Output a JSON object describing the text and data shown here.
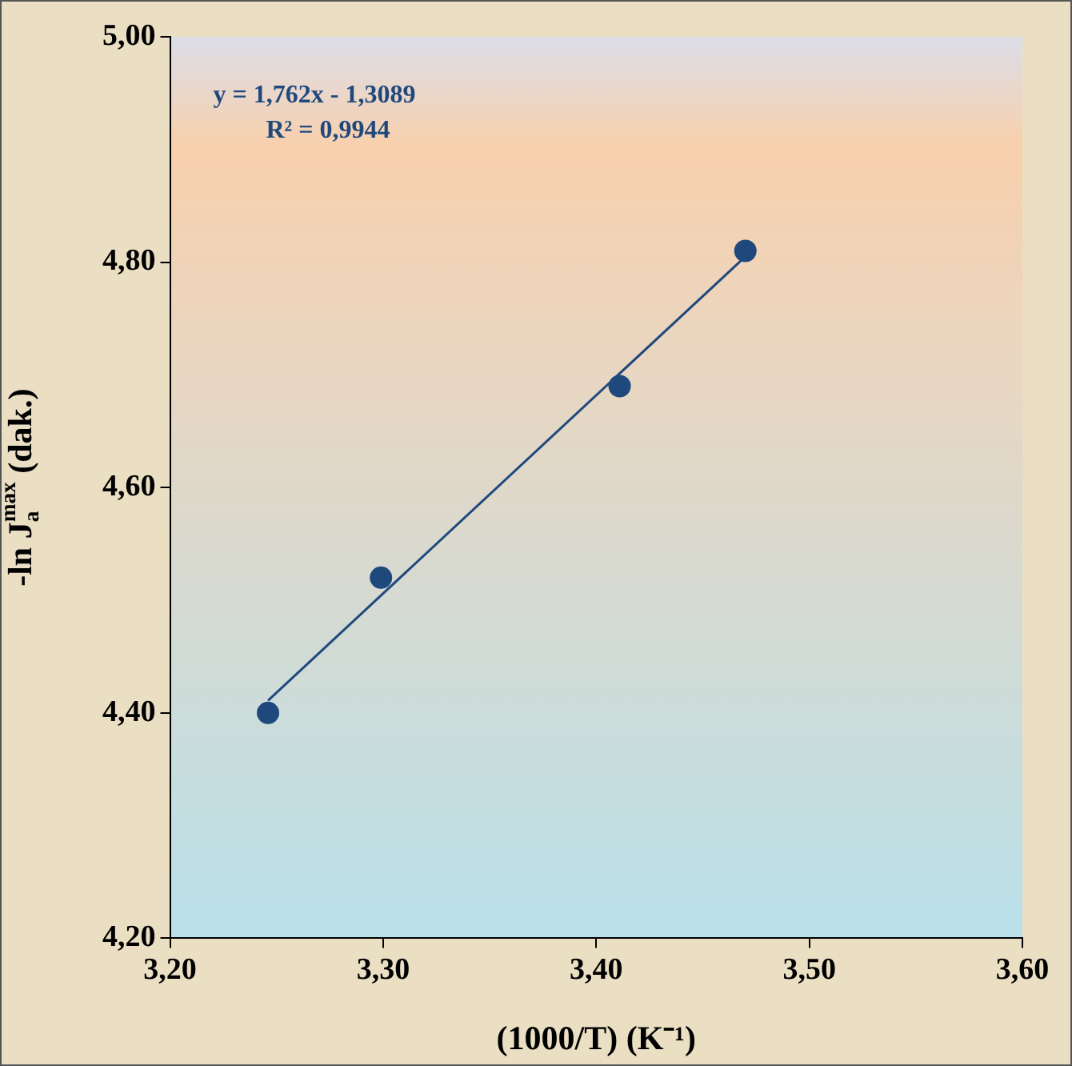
{
  "chart_data": {
    "type": "scatter",
    "xlabel": "(1000/T) (K⁻¹)",
    "ylabel": "-ln J$_{a}$$^{max}$ (dak.)",
    "series": [
      {
        "color": "#1f497d",
        "marker": "circle",
        "x": [
          3.246,
          3.299,
          3.411,
          3.47
        ],
        "values": [
          4.4,
          4.52,
          4.69,
          4.81
        ]
      },
      {
        "type": "line",
        "color": "#1f497d",
        "marker": "none",
        "line_style": "solid",
        "x": [
          3.246,
          3.47
        ],
        "values": [
          4.411,
          4.805
        ]
      }
    ],
    "xlim": [
      3.2,
      3.6
    ],
    "xticks": [
      {
        "value": 3.2,
        "label": "3,20"
      },
      {
        "value": 3.3,
        "label": "3,30"
      },
      {
        "value": 3.4,
        "label": "3,40"
      },
      {
        "value": 3.5,
        "label": "3,50"
      },
      {
        "value": 3.6,
        "label": "3,60"
      }
    ],
    "ylim": [
      4.2,
      5.0
    ],
    "yticks": [
      {
        "value": 4.2,
        "label": "4,20"
      },
      {
        "value": 4.4,
        "label": "4,40"
      },
      {
        "value": 4.6,
        "label": "4,60"
      },
      {
        "value": 4.8,
        "label": "4,80"
      },
      {
        "value": 5.0,
        "label": "5,00"
      }
    ],
    "annotations": [
      "y = 1,762x - 1,3089",
      "R² = 0,9944"
    ],
    "grid": false,
    "legend": false
  }
}
